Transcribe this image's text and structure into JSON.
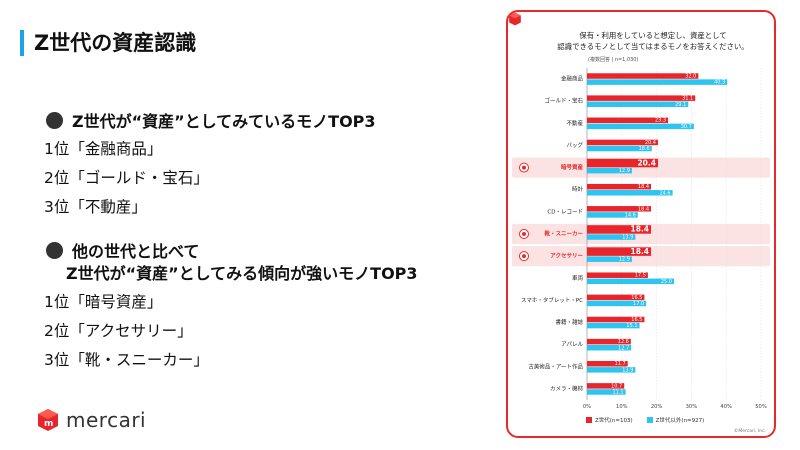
{
  "slide": {
    "title": "Z世代の資産認識",
    "section1": {
      "heading": "Z世代が“資産”としてみているモノTOP3",
      "ranks": [
        "1位「金融商品」",
        "2位「ゴールド・宝石」",
        "3位「不動産」"
      ]
    },
    "section2": {
      "heading_line1": "他の世代と比べて",
      "heading_line2": "Z世代が“資産”としてみる傾向が強いモノTOP3",
      "ranks": [
        "1位「暗号資産」",
        "2位「アクセサリー」",
        "3位「靴・スニーカー」"
      ]
    },
    "logo_text": "mercari"
  },
  "chart_card": {
    "question_line1": "保有・利用をしていると想定し、資産として",
    "question_line2": "認識できるモノとして当てはまるモノをお答えください。",
    "note": "(複数回答 | n=1,030)",
    "copyright": "©Mercari, Inc.",
    "colors": {
      "z": "#e8252a",
      "other": "#2ec4f0",
      "highlight": "#fbe3e3",
      "accent": "#e62a2a"
    },
    "highlight_icons": {
      "暗号資産": "yen-coin-icon",
      "靴・スニーカー": "sneaker-icon",
      "アクセサリー": "ring-icon"
    }
  },
  "chart_data": {
    "type": "bar",
    "orientation": "horizontal",
    "categories": [
      "金融商品",
      "ゴールド・宝石",
      "不動産",
      "バッグ",
      "暗号資産",
      "時計",
      "CD・レコード",
      "靴・スニーカー",
      "アクセサリー",
      "車両",
      "スマホ・タブレット・PC",
      "書籍・雑誌",
      "アパレル",
      "古美術品・アート作品",
      "カメラ・機材"
    ],
    "highlighted": [
      "暗号資産",
      "靴・スニーカー",
      "アクセサリー"
    ],
    "series": [
      {
        "name": "Z世代(n=103)",
        "values": [
          32.0,
          31.1,
          23.3,
          20.4,
          20.4,
          18.4,
          18.4,
          18.4,
          18.4,
          17.5,
          16.5,
          16.5,
          12.6,
          11.7,
          10.7
        ]
      },
      {
        "name": "Z世代以外(n=927)",
        "values": [
          40.3,
          29.1,
          30.7,
          18.6,
          12.9,
          24.6,
          14.6,
          13.9,
          12.9,
          25.0,
          17.0,
          15.1,
          12.7,
          13.9,
          11.1
        ]
      }
    ],
    "xlim": [
      0,
      50
    ],
    "xticks": [
      0,
      10,
      20,
      30,
      40,
      50
    ],
    "tick_suffix": "%",
    "legend_position": "bottom"
  }
}
